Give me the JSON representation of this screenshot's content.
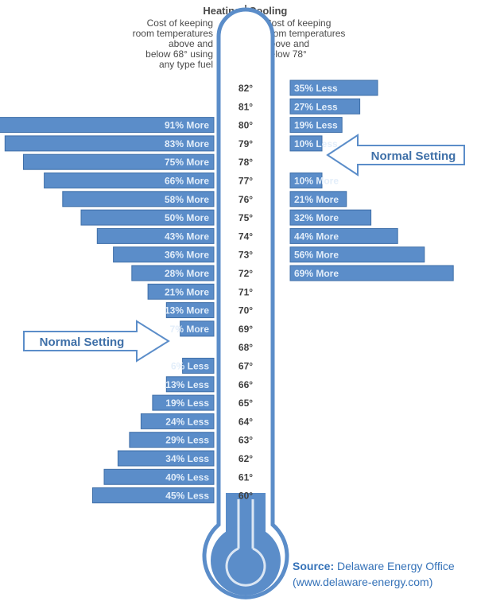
{
  "chart_data": {
    "type": "bar",
    "header": {
      "heating": "Heating",
      "cooling": "Cooling"
    },
    "heating_description": [
      "Cost of keeping",
      "room temperatures",
      "above and",
      "below 68° using",
      "any type fuel"
    ],
    "cooling_description": [
      "Cost of keeping",
      "room temperatures",
      "above and",
      "below 78°"
    ],
    "temperatures": [
      "82°",
      "81°",
      "80°",
      "79°",
      "78°",
      "77°",
      "76°",
      "75°",
      "74°",
      "73°",
      "72°",
      "71°",
      "70°",
      "69°",
      "68°",
      "67°",
      "66°",
      "65°",
      "64°",
      "63°",
      "62°",
      "61°",
      "60°"
    ],
    "heating": [
      {
        "temp": "80°",
        "value": 91,
        "label": "91% More"
      },
      {
        "temp": "79°",
        "value": 83,
        "label": "83% More"
      },
      {
        "temp": "78°",
        "value": 75,
        "label": "75% More"
      },
      {
        "temp": "77°",
        "value": 66,
        "label": "66% More"
      },
      {
        "temp": "76°",
        "value": 58,
        "label": "58% More"
      },
      {
        "temp": "75°",
        "value": 50,
        "label": "50% More"
      },
      {
        "temp": "74°",
        "value": 43,
        "label": "43% More"
      },
      {
        "temp": "73°",
        "value": 36,
        "label": "36% More"
      },
      {
        "temp": "72°",
        "value": 28,
        "label": "28% More"
      },
      {
        "temp": "71°",
        "value": 21,
        "label": "21% More"
      },
      {
        "temp": "70°",
        "value": 13,
        "label": "13% More"
      },
      {
        "temp": "69°",
        "value": 7,
        "label": "7% More"
      },
      {
        "temp": "67°",
        "value": -6,
        "label": "6% Less"
      },
      {
        "temp": "66°",
        "value": -13,
        "label": "13% Less"
      },
      {
        "temp": "65°",
        "value": -19,
        "label": "19% Less"
      },
      {
        "temp": "64°",
        "value": -24,
        "label": "24% Less"
      },
      {
        "temp": "63°",
        "value": -29,
        "label": "29% Less"
      },
      {
        "temp": "62°",
        "value": -34,
        "label": "34% Less"
      },
      {
        "temp": "61°",
        "value": -40,
        "label": "40% Less"
      },
      {
        "temp": "60°",
        "value": -45,
        "label": "45% Less"
      }
    ],
    "cooling": [
      {
        "temp": "82°",
        "value": -35,
        "label": "35% Less"
      },
      {
        "temp": "81°",
        "value": -27,
        "label": "27% Less"
      },
      {
        "temp": "80°",
        "value": -19,
        "label": "19% Less"
      },
      {
        "temp": "79°",
        "value": -10,
        "label": "10% Less"
      },
      {
        "temp": "77°",
        "value": 10,
        "label": "10% More"
      },
      {
        "temp": "76°",
        "value": 21,
        "label": "21% More"
      },
      {
        "temp": "75°",
        "value": 32,
        "label": "32% More"
      },
      {
        "temp": "74°",
        "value": 44,
        "label": "44% More"
      },
      {
        "temp": "73°",
        "value": 56,
        "label": "56% More"
      },
      {
        "temp": "72°",
        "value": 69,
        "label": "69% More"
      }
    ],
    "normal_setting_label": "Normal Setting",
    "normal_setting_cooling": "78°",
    "normal_setting_heating": "68°",
    "colors": {
      "bar_fill": "#5b8dc9",
      "bar_stroke": "#3f6fa8",
      "thermometer_fill": "#5b8dc9",
      "thermometer_light": "#dbe6f3",
      "callout_text": "#3f70a8"
    }
  },
  "source": {
    "label": "Source:",
    "org": "Delaware Energy Office",
    "url": "(www.delaware-energy.com)"
  }
}
